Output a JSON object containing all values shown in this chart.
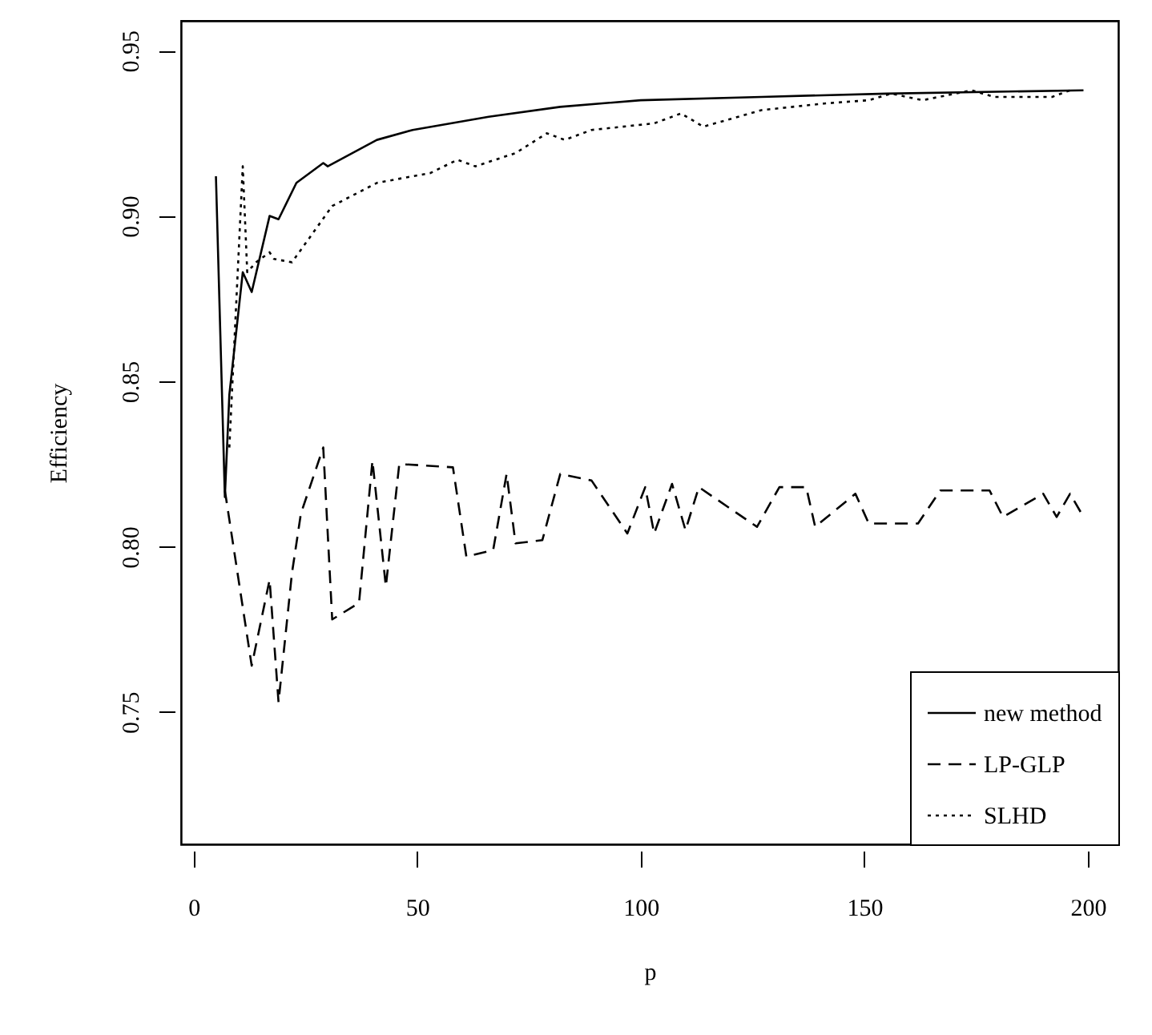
{
  "chart_data": {
    "type": "line",
    "xlabel": "p",
    "ylabel": "Efficiency",
    "xlim": [
      -2.8,
      206.8
    ],
    "ylim": [
      0.71,
      0.959
    ],
    "xticks": [
      0,
      50,
      100,
      150,
      200
    ],
    "yticks": [
      0.75,
      {
        "value": 0.8,
        "label": "0.80"
      },
      0.85,
      {
        "value": 0.9,
        "label": "0.90"
      },
      0.95
    ],
    "grid": false,
    "legend": "bottom right",
    "series": [
      {
        "name": "new method",
        "color": "#000000",
        "line_style": "solid",
        "x": [
          5,
          7,
          8,
          11,
          13,
          17,
          19,
          23,
          29,
          30,
          41,
          49,
          66,
          82,
          100,
          127,
          155,
          199
        ],
        "values": [
          0.912,
          0.815,
          0.846,
          0.883,
          0.877,
          0.9,
          0.899,
          0.91,
          0.916,
          0.915,
          0.923,
          0.926,
          0.93,
          0.933,
          0.935,
          0.936,
          0.937,
          0.938
        ]
      },
      {
        "name": "LP-GLP",
        "color": "#000000",
        "line_style": "dashed",
        "x": [
          7,
          13,
          17,
          19,
          22,
          24,
          29,
          31,
          37,
          40,
          43,
          46,
          58,
          61,
          67,
          70,
          72,
          78,
          82,
          89,
          97,
          101,
          103,
          107,
          110,
          113,
          126,
          131,
          137,
          139,
          148,
          151,
          162,
          167,
          178,
          181,
          190,
          193,
          196,
          199
        ],
        "values": [
          0.817,
          0.764,
          0.79,
          0.753,
          0.792,
          0.81,
          0.83,
          0.778,
          0.783,
          0.826,
          0.788,
          0.825,
          0.824,
          0.797,
          0.799,
          0.822,
          0.801,
          0.802,
          0.822,
          0.82,
          0.804,
          0.818,
          0.804,
          0.819,
          0.805,
          0.818,
          0.806,
          0.818,
          0.818,
          0.806,
          0.816,
          0.807,
          0.807,
          0.817,
          0.817,
          0.809,
          0.816,
          0.809,
          0.816,
          0.809
        ]
      },
      {
        "name": "SLHD",
        "color": "#000000",
        "line_style": "dotted",
        "x": [
          8,
          11,
          12,
          14,
          17,
          18,
          22,
          31,
          41,
          53,
          59,
          63,
          72,
          79,
          83,
          89,
          103,
          109,
          114,
          127,
          141,
          151,
          156,
          163,
          174,
          179,
          192,
          196
        ],
        "values": [
          0.83,
          0.915,
          0.883,
          0.886,
          0.889,
          0.887,
          0.886,
          0.903,
          0.91,
          0.913,
          0.917,
          0.915,
          0.919,
          0.925,
          0.923,
          0.926,
          0.928,
          0.931,
          0.927,
          0.932,
          0.934,
          0.935,
          0.937,
          0.935,
          0.938,
          0.936,
          0.936,
          0.938
        ]
      }
    ]
  }
}
